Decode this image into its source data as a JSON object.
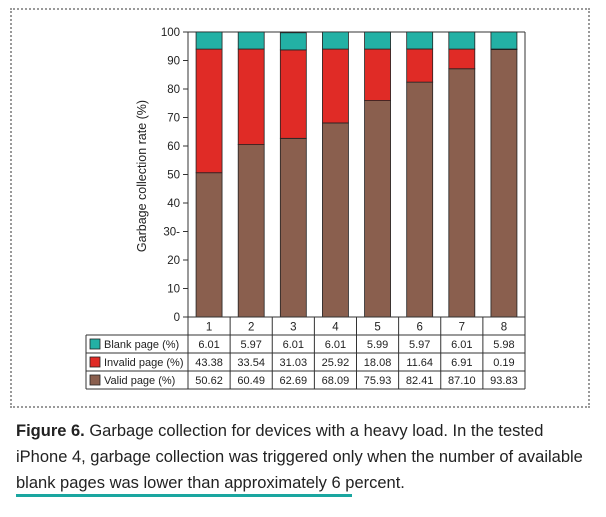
{
  "chart_data": {
    "type": "bar",
    "stacked": true,
    "categories": [
      "1",
      "2",
      "3",
      "4",
      "5",
      "6",
      "7",
      "8"
    ],
    "series": [
      {
        "name": "Valid page (%)",
        "values": [
          50.62,
          60.49,
          62.69,
          68.09,
          75.93,
          82.41,
          87.1,
          93.83
        ],
        "color": "#8a5f4e",
        "display": [
          "50.62",
          "60.49",
          "62.69",
          "68.09",
          "75.93",
          "82.41",
          "87.10",
          "93.83"
        ]
      },
      {
        "name": "Invalid page (%)",
        "values": [
          43.38,
          33.54,
          31.03,
          25.92,
          18.08,
          11.64,
          6.91,
          0.19
        ],
        "color": "#e02b26",
        "display": [
          "43.38",
          "33.54",
          "31.03",
          "25.92",
          "18.08",
          "11.64",
          "6.91",
          "0.19"
        ]
      },
      {
        "name": "Blank page (%)",
        "values": [
          6.01,
          5.97,
          6.01,
          6.01,
          5.99,
          5.97,
          6.01,
          5.98
        ],
        "color": "#23b1a5",
        "display": [
          "6.01",
          "5.97",
          "6.01",
          "6.01",
          "5.99",
          "5.97",
          "6.01",
          "5.98"
        ]
      }
    ],
    "table_rows": [
      "Blank page (%)",
      "Invalid page (%)",
      "Valid page (%)"
    ],
    "ylabel": "Garbage collection rate (%)",
    "yticks": [
      "0",
      "10",
      "20",
      "30-",
      "40",
      "50",
      "60",
      "70",
      "80",
      "90",
      "100"
    ],
    "ylim": [
      0,
      100
    ],
    "grid": false,
    "legend": "table-below"
  },
  "caption": {
    "label": "Figure 6.",
    "text": " Garbage collection for devices with a heavy load. In the tested iPhone 4, garbage collection was triggered only when the number of available blank pages was lower than approximately 6 percent."
  }
}
